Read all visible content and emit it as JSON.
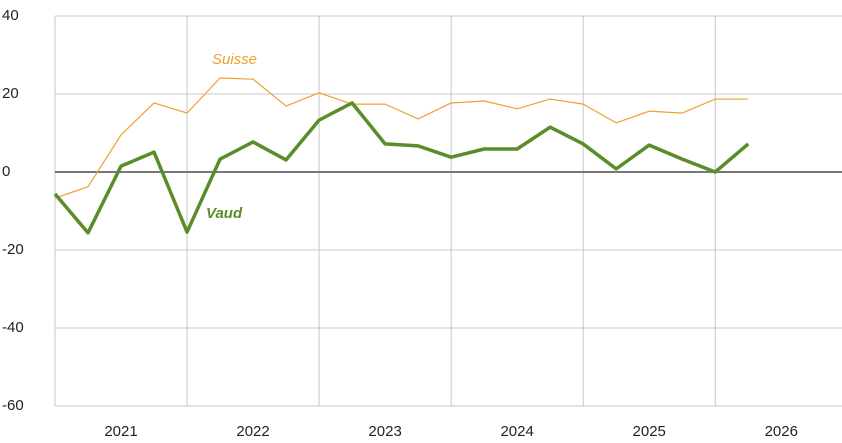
{
  "chart_data": {
    "type": "line",
    "x": [
      2021,
      2021.25,
      2021.5,
      2021.75,
      2022,
      2022.25,
      2022.5,
      2022.75,
      2023,
      2023.25,
      2023.5,
      2023.75,
      2024,
      2024.25,
      2024.5,
      2024.75,
      2025,
      2025.25,
      2025.5,
      2025.75,
      2026,
      2026.25
    ],
    "series": [
      {
        "name": "Suisse",
        "color": "#f0a030",
        "width": 1.2,
        "values": [
          -6.7,
          -3.8,
          9.5,
          17.7,
          15.1,
          24.1,
          23.8,
          16.9,
          20.3,
          17.4,
          17.4,
          13.6,
          17.7,
          18.2,
          16.2,
          18.7,
          17.4,
          12.6,
          15.6,
          15.1,
          18.7,
          18.7
        ]
      },
      {
        "name": "Vaud",
        "color": "#5b8c2a",
        "width": 3.5,
        "values": [
          -5.6,
          -15.6,
          1.5,
          5.1,
          -15.4,
          3.3,
          7.7,
          3.1,
          13.3,
          17.7,
          7.2,
          6.7,
          3.8,
          5.9,
          5.9,
          11.5,
          7.2,
          0.8,
          6.9,
          3.3,
          0,
          7.2
        ]
      }
    ],
    "xlim": [
      2021,
      2026.96
    ],
    "xticks": [
      {
        "value": 2021.5,
        "label": "2021"
      },
      {
        "value": 2022.5,
        "label": "2022"
      },
      {
        "value": 2023.5,
        "label": "2023"
      },
      {
        "value": 2024.5,
        "label": "2024"
      },
      {
        "value": 2025.5,
        "label": "2025"
      },
      {
        "value": 2026.5,
        "label": "2026"
      }
    ],
    "xgrid": [
      2021,
      2022,
      2023,
      2024,
      2025,
      2026
    ],
    "ylim": [
      -60,
      40
    ],
    "yticks": [
      -60,
      -40,
      -20,
      0,
      20,
      40
    ],
    "grid": true
  }
}
